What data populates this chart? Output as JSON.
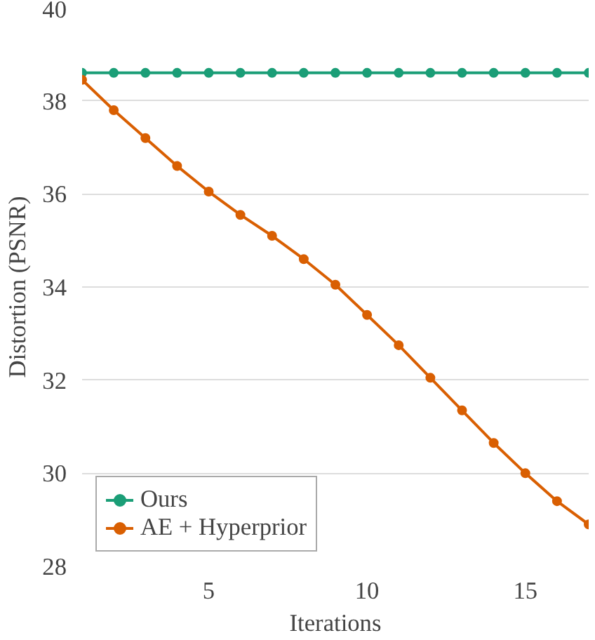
{
  "chart_data": {
    "type": "line",
    "xlabel": "Iterations",
    "ylabel": "Distortion (PSNR)",
    "x": [
      1,
      2,
      3,
      4,
      5,
      6,
      7,
      8,
      9,
      10,
      11,
      12,
      13,
      14,
      15,
      16,
      17
    ],
    "series": [
      {
        "name": "Ours",
        "color": "#1b9e77",
        "values": [
          38.6,
          38.6,
          38.6,
          38.6,
          38.6,
          38.6,
          38.6,
          38.6,
          38.6,
          38.6,
          38.6,
          38.6,
          38.6,
          38.6,
          38.6,
          38.6,
          38.6
        ]
      },
      {
        "name": "AE + Hyperprior",
        "color": "#d95f02",
        "values": [
          38.45,
          37.8,
          37.2,
          36.6,
          36.05,
          35.55,
          35.1,
          34.6,
          34.05,
          33.4,
          32.75,
          32.05,
          31.35,
          30.65,
          30.0,
          29.4,
          28.9
        ]
      }
    ],
    "xlim": [
      1,
      17
    ],
    "ylim": [
      28,
      40
    ],
    "xticks": [
      5,
      10,
      15
    ],
    "yticks": [
      28,
      30,
      32,
      34,
      36,
      38,
      40
    ],
    "grid": "y",
    "legend": "bottom left",
    "marker": "circle",
    "line_style": "solid"
  }
}
